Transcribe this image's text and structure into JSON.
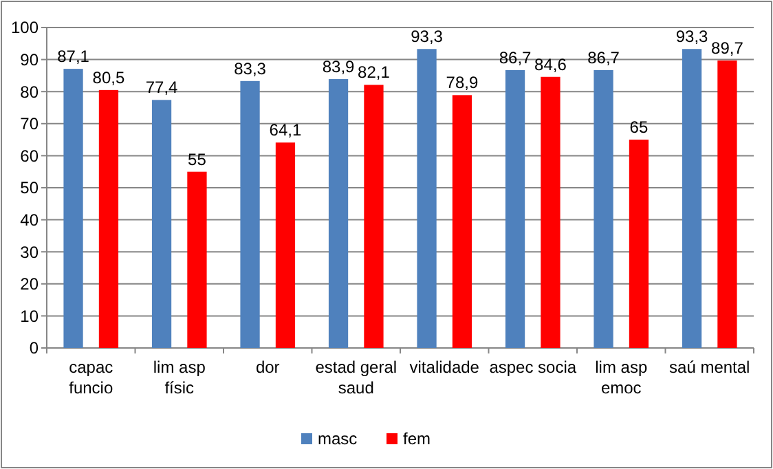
{
  "chart_data": {
    "type": "bar",
    "categories": [
      "capac funcio",
      "lim asp físic",
      "dor",
      "estad geral saud",
      "vitalidade",
      "aspec socia",
      "lim asp emoc",
      "saú mental"
    ],
    "series": [
      {
        "name": "masc",
        "color": "#4f81bd",
        "values": [
          87.1,
          77.4,
          83.3,
          83.9,
          93.3,
          86.7,
          86.7,
          93.3
        ]
      },
      {
        "name": "fem",
        "color": "#ff0000",
        "values": [
          80.5,
          55,
          64.1,
          82.1,
          78.9,
          84.6,
          65,
          89.7
        ]
      }
    ],
    "value_labels": [
      [
        "87,1",
        "77,4",
        "83,3",
        "83,9",
        "93,3",
        "86,7",
        "86,7",
        "93,3"
      ],
      [
        "80,5",
        "55",
        "64,1",
        "82,1",
        "78,9",
        "84,6",
        "65",
        "89,7"
      ]
    ],
    "ylim": [
      0,
      100
    ],
    "yticks": [
      0,
      10,
      20,
      30,
      40,
      50,
      60,
      70,
      80,
      90,
      100
    ],
    "grid": "y",
    "legend": "bottom"
  }
}
